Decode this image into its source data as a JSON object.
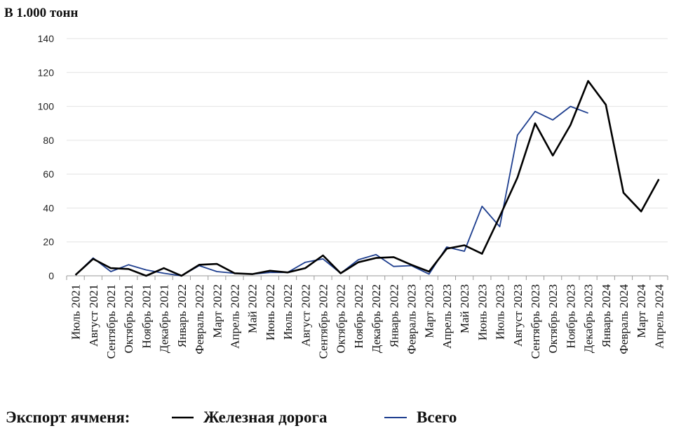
{
  "chart_data": {
    "type": "line",
    "unit_label": "В 1.000 тонн",
    "ylim": [
      0,
      140
    ],
    "yticks": [
      0,
      20,
      40,
      60,
      80,
      100,
      120,
      140
    ],
    "grid": true,
    "categories": [
      "Июль 2021",
      "Август 2021",
      "Сентябрь 2021",
      "Октябрь 2021",
      "Ноябрь 2021",
      "Декабрь 2021",
      "Январь 2022",
      "Февраль 2022",
      "Март 2022",
      "Апрель 2022",
      "Май 2022",
      "Июнь 2022",
      "Июль 2022",
      "Август 2022",
      "Сентябрь 2022",
      "Октябрь 2022",
      "Ноябрь 2022",
      "Декабрь 2022",
      "Январь 2022",
      "Февраль 2023",
      "Март 2023",
      "Апрель 2023",
      "Май 2023",
      "Июнь 2023",
      "Июль 2023",
      "Август 2023",
      "Сентябрь 2023",
      "Октябрь 2023",
      "Ноябрь 2023",
      "Декабрь 2023",
      "Январь 2024",
      "Февраль 2024",
      "Март 2024",
      "Апрель 2024"
    ],
    "series": [
      {
        "name": "Железная дорога",
        "color": "#000000",
        "values": [
          0.5,
          10,
          4.5,
          4,
          0,
          4.5,
          0,
          6.5,
          7,
          1.5,
          1,
          3,
          2,
          4.5,
          12,
          1.5,
          8,
          10.5,
          11,
          6.5,
          2.5,
          16,
          18,
          13,
          35,
          58,
          90,
          71,
          89,
          115,
          101,
          49,
          38,
          57
        ]
      },
      {
        "name": "Всего",
        "color": "#1f3f8f",
        "values": [
          0.5,
          10.5,
          2.5,
          6.5,
          3.5,
          1.5,
          0,
          6,
          2.5,
          1.5,
          1,
          2,
          2,
          8,
          10,
          1.5,
          9.5,
          12.5,
          5.5,
          6,
          1,
          17,
          14.5,
          41,
          29,
          83,
          97,
          92,
          100,
          96,
          null,
          null,
          null,
          null
        ]
      }
    ],
    "legend": {
      "title": "Экспорт ячменя:",
      "position": "bottom"
    }
  }
}
